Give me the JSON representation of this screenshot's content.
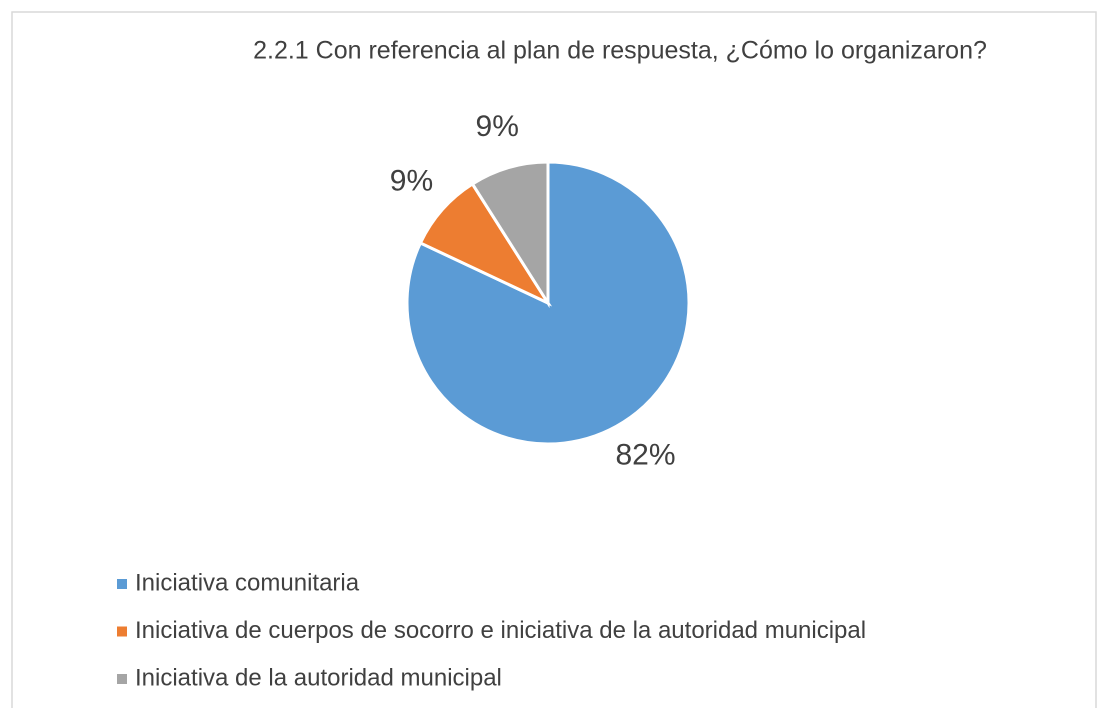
{
  "chart_data": {
    "type": "pie",
    "title": "2.2.1 Con referencia al plan de respuesta, ¿Cómo lo organizaron?",
    "categories": [
      "Iniciativa comunitaria",
      "Iniciativa de cuerpos de socorro e iniciativa de la autoridad municipal",
      "Iniciativa de la autoridad municipal"
    ],
    "values": [
      82,
      9,
      9
    ],
    "value_labels": [
      "82%",
      "9%",
      "9%"
    ],
    "colors": [
      "#5b9bd5",
      "#ed7d31",
      "#a5a5a5"
    ],
    "legend": "bottom"
  }
}
